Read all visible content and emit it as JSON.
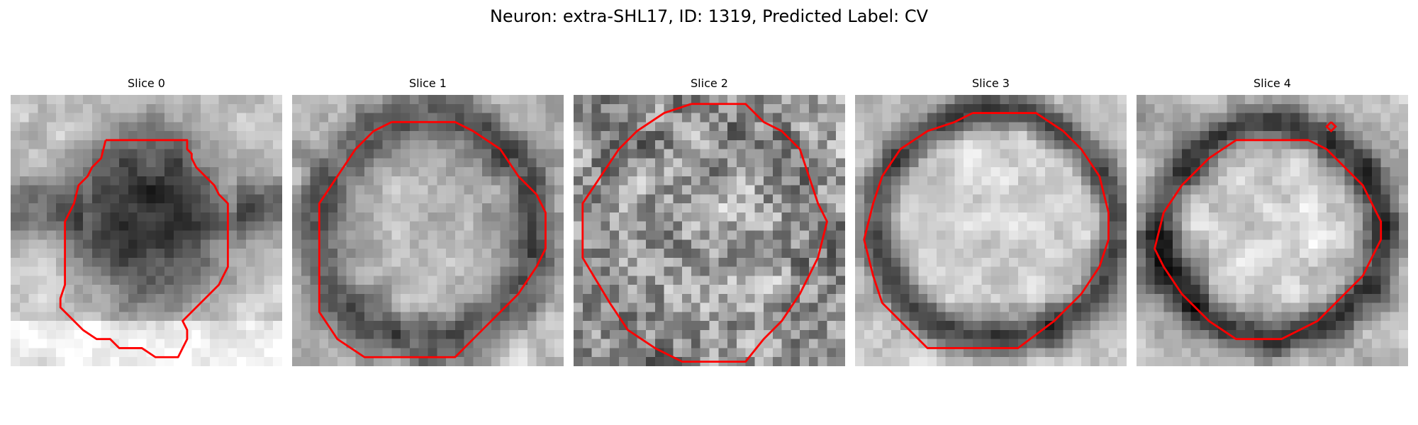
{
  "figure": {
    "title": "Neuron: extra-SHL17, ID: 1319, Predicted Label: CV"
  },
  "panels": [
    {
      "title": "Slice 0",
      "pattern": "dark-centered-blob",
      "seed": 11
    },
    {
      "title": "Slice 1",
      "pattern": "round-cell-dark-ring",
      "seed": 23
    },
    {
      "title": "Slice 2",
      "pattern": "noisy-textured-disc",
      "seed": 37
    },
    {
      "title": "Slice 3",
      "pattern": "bright-cell-dark-ring",
      "seed": 53
    },
    {
      "title": "Slice 4",
      "pattern": "bright-cell-dark-ring-offset",
      "seed": 71
    }
  ],
  "colors": {
    "contour": "#ff0000",
    "background": "#ffffff",
    "colormap": "gray"
  }
}
